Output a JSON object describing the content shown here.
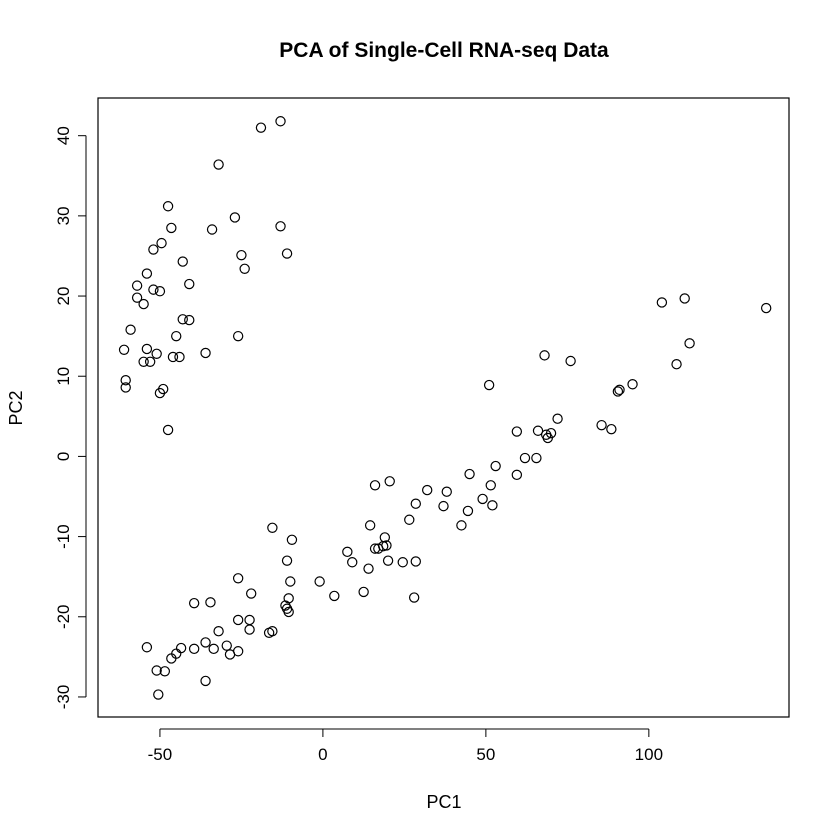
{
  "chart_data": {
    "type": "scatter",
    "title": "PCA of Single-Cell RNA-seq Data",
    "xlabel": "PC1",
    "ylabel": "PC2",
    "xlim": [
      -69,
      143
    ],
    "ylim": [
      -32.5,
      44.7
    ],
    "xticks": [
      -50,
      0,
      50,
      100
    ],
    "yticks": [
      -30,
      -20,
      -10,
      0,
      10,
      20,
      30,
      40
    ],
    "grid": false,
    "points": [
      {
        "x": -19,
        "y": 41
      },
      {
        "x": -13,
        "y": 41.8
      },
      {
        "x": -32,
        "y": 36.4
      },
      {
        "x": -47.5,
        "y": 31.2
      },
      {
        "x": -27,
        "y": 29.8
      },
      {
        "x": -13,
        "y": 28.7
      },
      {
        "x": -46.5,
        "y": 28.5
      },
      {
        "x": -34,
        "y": 28.3
      },
      {
        "x": -49.5,
        "y": 26.6
      },
      {
        "x": -52,
        "y": 25.8
      },
      {
        "x": -25,
        "y": 25.1
      },
      {
        "x": -11,
        "y": 25.3
      },
      {
        "x": -43,
        "y": 24.3
      },
      {
        "x": -24,
        "y": 23.4
      },
      {
        "x": -54,
        "y": 22.8
      },
      {
        "x": -41,
        "y": 21.5
      },
      {
        "x": -57,
        "y": 21.3
      },
      {
        "x": -52,
        "y": 20.8
      },
      {
        "x": -50,
        "y": 20.6
      },
      {
        "x": -57,
        "y": 19.8
      },
      {
        "x": -55,
        "y": 19
      },
      {
        "x": -43,
        "y": 17.1
      },
      {
        "x": -41,
        "y": 17
      },
      {
        "x": -59,
        "y": 15.8
      },
      {
        "x": -45,
        "y": 15
      },
      {
        "x": -26,
        "y": 15
      },
      {
        "x": -61,
        "y": 13.3
      },
      {
        "x": -54,
        "y": 13.4
      },
      {
        "x": -51,
        "y": 12.8
      },
      {
        "x": -36,
        "y": 12.9
      },
      {
        "x": -46,
        "y": 12.4
      },
      {
        "x": -44,
        "y": 12.4
      },
      {
        "x": -55,
        "y": 11.8
      },
      {
        "x": -53,
        "y": 11.8
      },
      {
        "x": -60.5,
        "y": 9.5
      },
      {
        "x": -60.5,
        "y": 8.6
      },
      {
        "x": -49,
        "y": 8.4
      },
      {
        "x": -50,
        "y": 7.9
      },
      {
        "x": -47.5,
        "y": 3.3
      },
      {
        "x": 51,
        "y": 8.9
      },
      {
        "x": 68,
        "y": 12.6
      },
      {
        "x": 76,
        "y": 11.9
      },
      {
        "x": 104,
        "y": 19.2
      },
      {
        "x": 111,
        "y": 19.7
      },
      {
        "x": 136,
        "y": 18.5
      },
      {
        "x": 112.5,
        "y": 14.1
      },
      {
        "x": 108.5,
        "y": 11.5
      },
      {
        "x": 95,
        "y": 9
      },
      {
        "x": 91,
        "y": 8.3
      },
      {
        "x": 90.5,
        "y": 8.1
      },
      {
        "x": 72,
        "y": 4.7
      },
      {
        "x": 85.5,
        "y": 3.9
      },
      {
        "x": 88.5,
        "y": 3.4
      },
      {
        "x": 59.5,
        "y": 3.1
      },
      {
        "x": 66,
        "y": 3.2
      },
      {
        "x": 70,
        "y": 2.9
      },
      {
        "x": 68.5,
        "y": 2.7
      },
      {
        "x": 69,
        "y": 2.3
      },
      {
        "x": 62,
        "y": -0.2
      },
      {
        "x": 65.5,
        "y": -0.2
      },
      {
        "x": 53,
        "y": -1.2
      },
      {
        "x": 45,
        "y": -2.2
      },
      {
        "x": 59.5,
        "y": -2.3
      },
      {
        "x": 20.5,
        "y": -3.1
      },
      {
        "x": 16,
        "y": -3.6
      },
      {
        "x": 51.5,
        "y": -3.6
      },
      {
        "x": 32,
        "y": -4.2
      },
      {
        "x": 38,
        "y": -4.4
      },
      {
        "x": 49,
        "y": -5.3
      },
      {
        "x": 28.5,
        "y": -5.9
      },
      {
        "x": 37,
        "y": -6.2
      },
      {
        "x": 52,
        "y": -6.1
      },
      {
        "x": 44.5,
        "y": -6.8
      },
      {
        "x": 26.5,
        "y": -7.9
      },
      {
        "x": 14.5,
        "y": -8.6
      },
      {
        "x": 42.5,
        "y": -8.6
      },
      {
        "x": -15.5,
        "y": -8.9
      },
      {
        "x": -9.5,
        "y": -10.4
      },
      {
        "x": 19,
        "y": -10.1
      },
      {
        "x": 18.5,
        "y": -11.2
      },
      {
        "x": 16,
        "y": -11.5
      },
      {
        "x": 17,
        "y": -11.5
      },
      {
        "x": 19.5,
        "y": -11.1
      },
      {
        "x": 7.5,
        "y": -11.9
      },
      {
        "x": -11,
        "y": -13
      },
      {
        "x": 9,
        "y": -13.2
      },
      {
        "x": 20,
        "y": -13
      },
      {
        "x": 24.5,
        "y": -13.2
      },
      {
        "x": 28.5,
        "y": -13.1
      },
      {
        "x": 14,
        "y": -14
      },
      {
        "x": -26,
        "y": -15.2
      },
      {
        "x": -10,
        "y": -15.6
      },
      {
        "x": -1,
        "y": -15.6
      },
      {
        "x": 12.5,
        "y": -16.9
      },
      {
        "x": -22,
        "y": -17.1
      },
      {
        "x": 3.5,
        "y": -17.4
      },
      {
        "x": 28,
        "y": -17.6
      },
      {
        "x": -10.5,
        "y": -17.7
      },
      {
        "x": -39.5,
        "y": -18.3
      },
      {
        "x": -34.5,
        "y": -18.2
      },
      {
        "x": -11.5,
        "y": -18.6
      },
      {
        "x": -11,
        "y": -19
      },
      {
        "x": -10.5,
        "y": -19.4
      },
      {
        "x": -26,
        "y": -20.4
      },
      {
        "x": -22.5,
        "y": -20.4
      },
      {
        "x": -22.5,
        "y": -21.6
      },
      {
        "x": -32,
        "y": -21.8
      },
      {
        "x": -15.5,
        "y": -21.8
      },
      {
        "x": -16.5,
        "y": -22
      },
      {
        "x": -36,
        "y": -23.2
      },
      {
        "x": -54,
        "y": -23.8
      },
      {
        "x": -29.5,
        "y": -23.6
      },
      {
        "x": -39.5,
        "y": -24
      },
      {
        "x": -43.5,
        "y": -23.9
      },
      {
        "x": -33.5,
        "y": -24
      },
      {
        "x": -26,
        "y": -24.3
      },
      {
        "x": -45,
        "y": -24.6
      },
      {
        "x": -28.5,
        "y": -24.7
      },
      {
        "x": -46.5,
        "y": -25.2
      },
      {
        "x": -51,
        "y": -26.7
      },
      {
        "x": -48.5,
        "y": -26.8
      },
      {
        "x": -36,
        "y": -28
      },
      {
        "x": -50.5,
        "y": -29.7
      }
    ]
  }
}
